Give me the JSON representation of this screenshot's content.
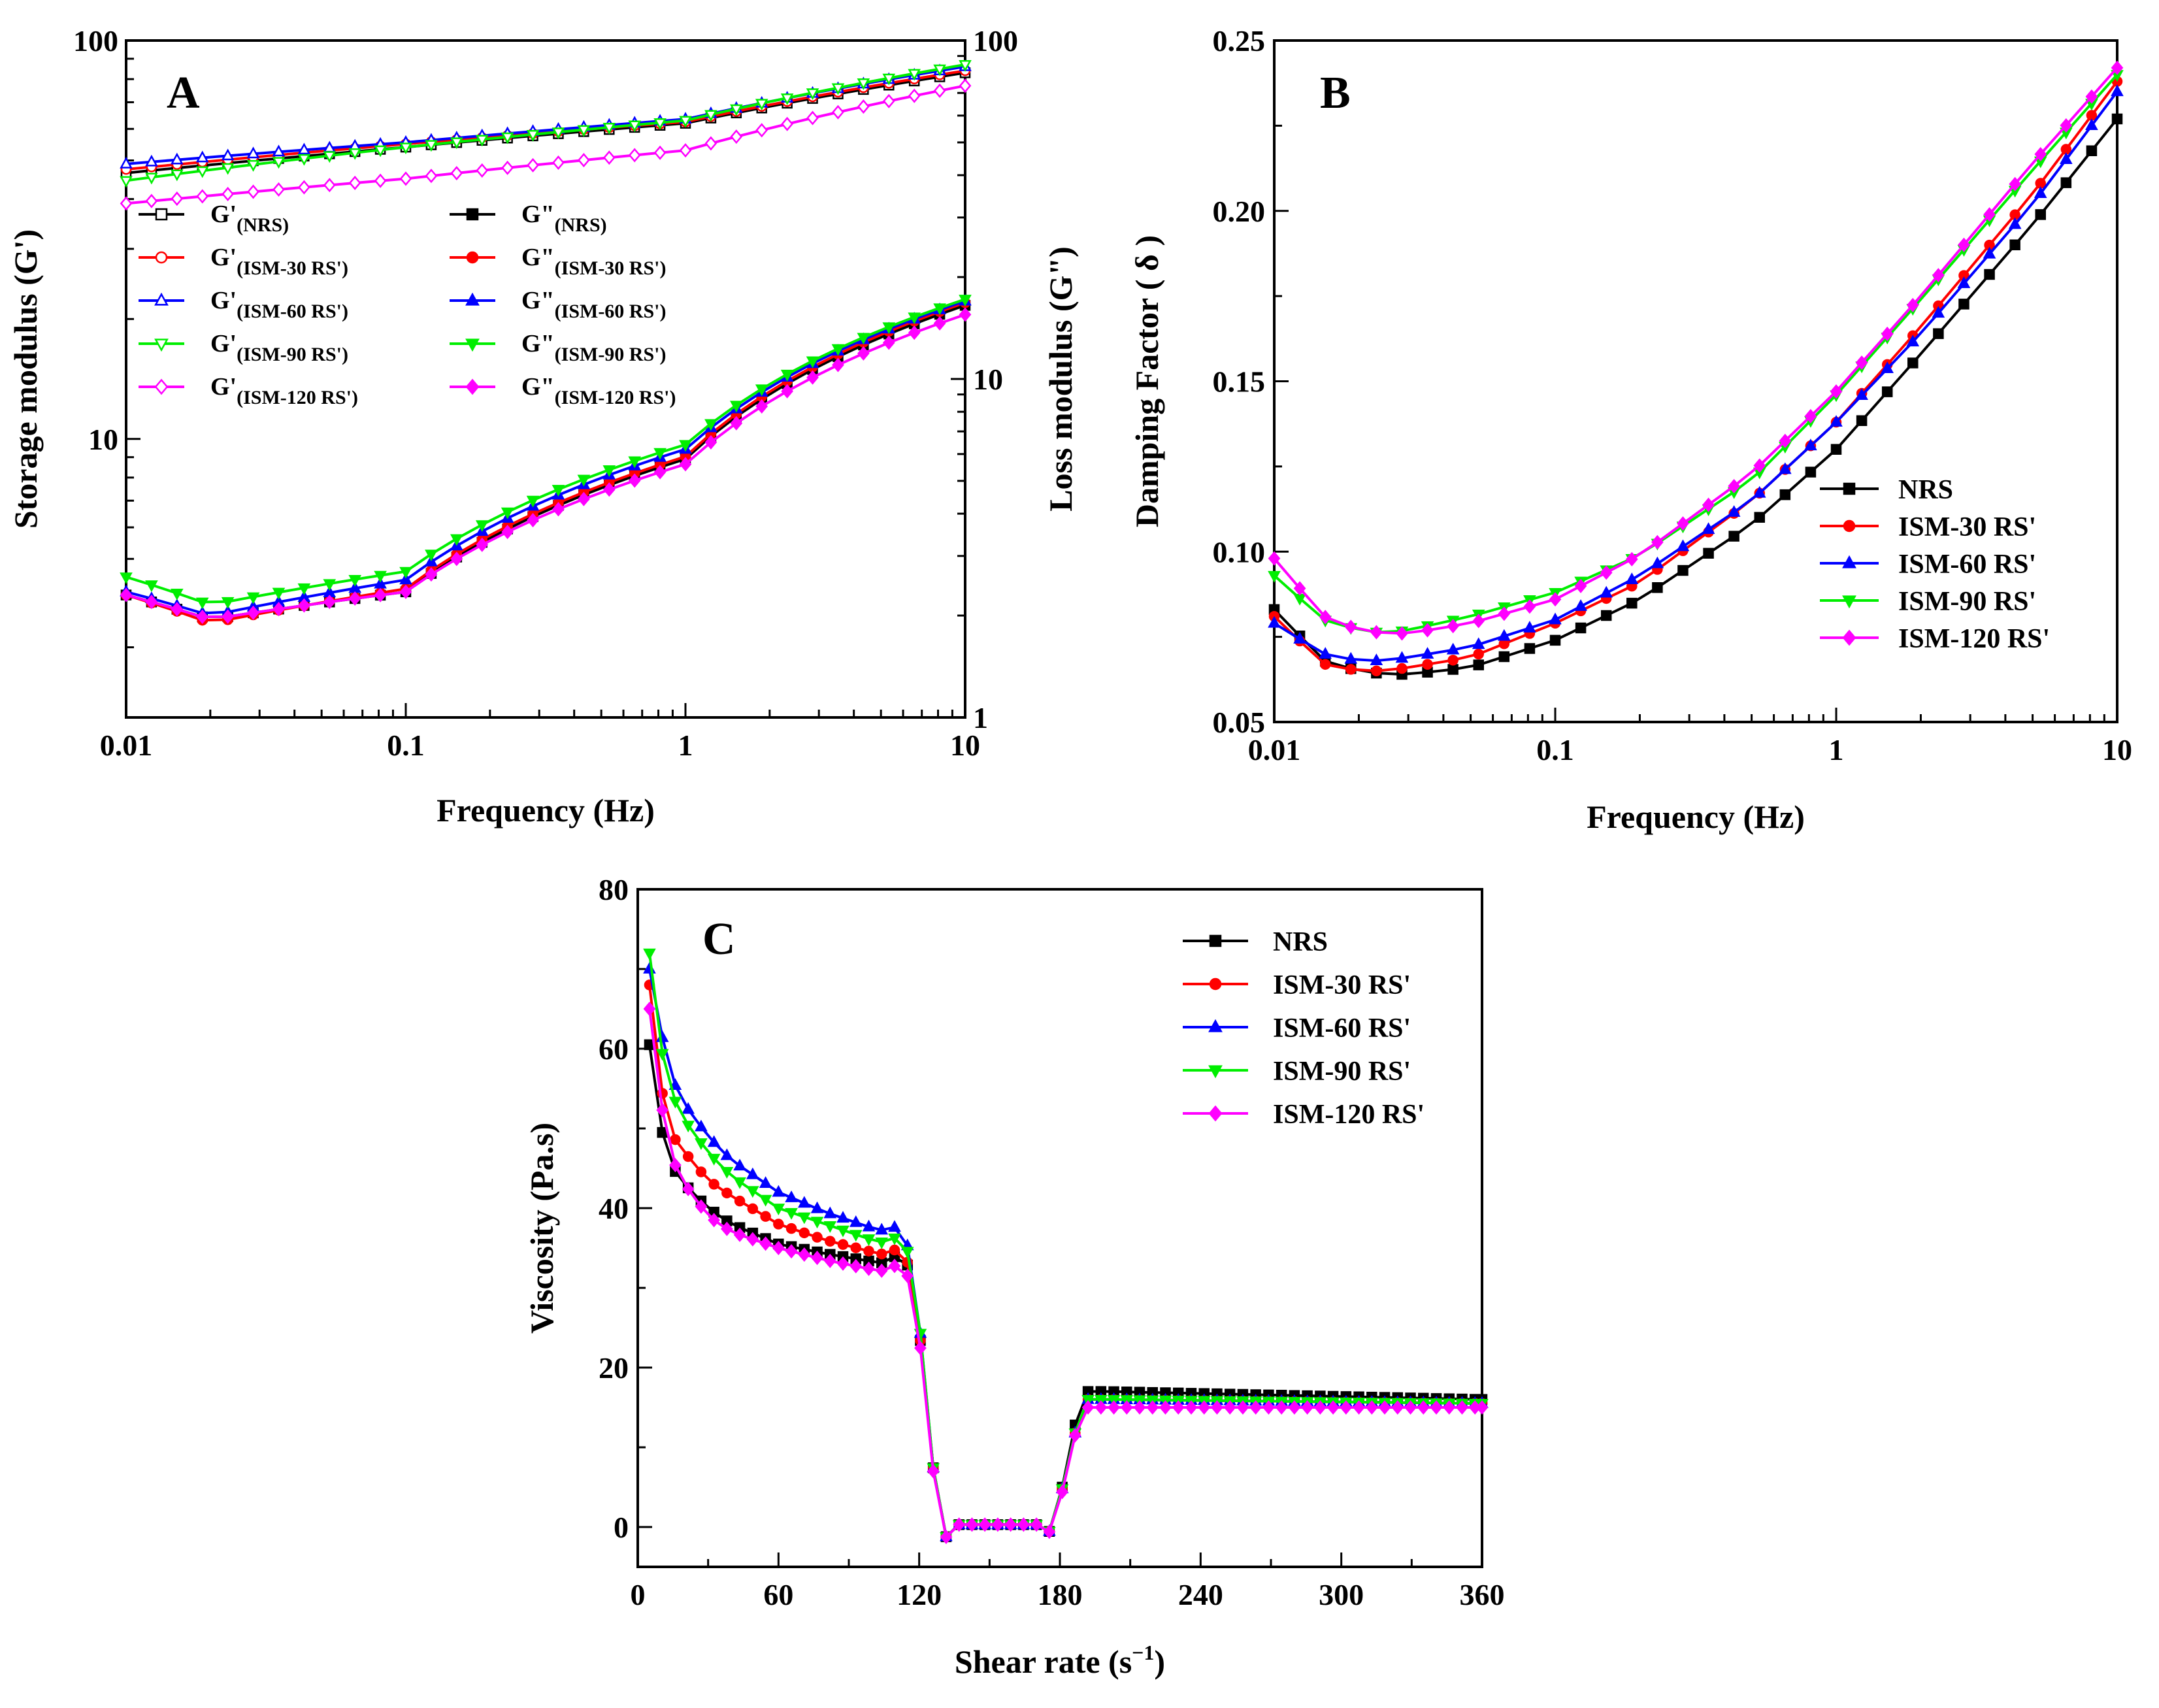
{
  "figure": {
    "panels": [
      "A",
      "B",
      "C"
    ]
  },
  "chart_data": [
    {
      "panel": "A",
      "type": "line",
      "title": "",
      "xlabel": "Frequency (Hz)",
      "ylabel": "Storage modulus (G')",
      "ylabel_right": "Loss modulus (G\")",
      "x_scale": "log",
      "y_scale": "log",
      "xlim": [
        0.01,
        10
      ],
      "ylim": [
        2,
        100
      ],
      "ylim_right": [
        1,
        100
      ],
      "x_ticks": [
        "0.01",
        "0.1",
        "1",
        "10"
      ],
      "y_ticks": [
        "10",
        "100"
      ],
      "y_ticks_right": [
        "1",
        "10",
        "100"
      ],
      "legend_position": "upper-left",
      "legend": [
        {
          "main": "G'",
          "sub": "(NRS)",
          "color": "#000000",
          "marker": "square",
          "filled": false
        },
        {
          "main": "G\"",
          "sub": "(NRS)",
          "color": "#000000",
          "marker": "square",
          "filled": true
        },
        {
          "main": "G'",
          "sub": "(ISM-30 RS')",
          "color": "#ff0000",
          "marker": "circle",
          "filled": false
        },
        {
          "main": "G\"",
          "sub": "(ISM-30 RS')",
          "color": "#ff0000",
          "marker": "circle",
          "filled": true
        },
        {
          "main": "G'",
          "sub": "(ISM-60 RS')",
          "color": "#0000ff",
          "marker": "triangle-up",
          "filled": false
        },
        {
          "main": "G\"",
          "sub": "(ISM-60 RS')",
          "color": "#0000ff",
          "marker": "triangle-up",
          "filled": true
        },
        {
          "main": "G'",
          "sub": "(ISM-90 RS')",
          "color": "#00ee00",
          "marker": "triangle-down",
          "filled": false
        },
        {
          "main": "G\"",
          "sub": "(ISM-90 RS')",
          "color": "#00ee00",
          "marker": "triangle-down",
          "filled": true
        },
        {
          "main": "G'",
          "sub": "(ISM-120 RS')",
          "color": "#ff00ff",
          "marker": "diamond",
          "filled": false
        },
        {
          "main": "G\"",
          "sub": "(ISM-120 RS')",
          "color": "#ff00ff",
          "marker": "diamond",
          "filled": true
        }
      ],
      "storage_series": [
        {
          "name": "G'(NRS)",
          "x": [
            0.01,
            0.1,
            1,
            10
          ],
          "values": [
            46.5,
            54,
            62,
            83
          ]
        },
        {
          "name": "G'(ISM-30 RS')",
          "x": [
            0.01,
            0.1,
            1,
            10
          ],
          "values": [
            47.5,
            55,
            62.5,
            84
          ]
        },
        {
          "name": "G'(ISM-60 RS')",
          "x": [
            0.01,
            0.1,
            1,
            10
          ],
          "values": [
            49,
            55.5,
            63.5,
            86
          ]
        },
        {
          "name": "G'(ISM-90 RS')",
          "x": [
            0.01,
            0.1,
            1,
            10
          ],
          "values": [
            44.5,
            54,
            63,
            87
          ]
        },
        {
          "name": "G'(ISM-120 RS')",
          "x": [
            0.01,
            0.1,
            1,
            10
          ],
          "values": [
            39,
            45,
            53,
            77
          ]
        }
      ],
      "loss_series": [
        {
          "name": "G\"(NRS)",
          "x": [
            0.01,
            0.02,
            0.1,
            1,
            10
          ],
          "values": [
            2.3,
            1.95,
            2.35,
            5.8,
            16.5
          ]
        },
        {
          "name": "G\"(ISM-30 RS')",
          "x": [
            0.01,
            0.02,
            0.1,
            1,
            10
          ],
          "values": [
            2.3,
            1.9,
            2.4,
            5.9,
            16.8
          ]
        },
        {
          "name": "G\"(ISM-60 RS')",
          "x": [
            0.01,
            0.02,
            0.1,
            1,
            10
          ],
          "values": [
            2.35,
            2.0,
            2.55,
            6.2,
            17.0
          ]
        },
        {
          "name": "G\"(ISM-90 RS')",
          "x": [
            0.01,
            0.02,
            0.1,
            1,
            10
          ],
          "values": [
            2.6,
            2.15,
            2.7,
            6.4,
            17.2
          ]
        },
        {
          "name": "G\"(ISM-120 RS')",
          "x": [
            0.01,
            0.02,
            0.1,
            1,
            10
          ],
          "values": [
            2.3,
            1.95,
            2.35,
            5.6,
            15.5
          ]
        }
      ]
    },
    {
      "panel": "B",
      "type": "line",
      "title": "",
      "xlabel": "Frequency (Hz)",
      "ylabel": "Damping Factor ( δ )",
      "x_scale": "log",
      "xlim": [
        0.01,
        10
      ],
      "ylim": [
        0.05,
        0.25
      ],
      "x_ticks": [
        "0.01",
        "0.1",
        "1",
        "10"
      ],
      "y_ticks": [
        "0.05",
        "0.10",
        "0.15",
        "0.20",
        "0.25"
      ],
      "legend_position": "center-right",
      "series": [
        {
          "name": "NRS",
          "color": "#000000",
          "marker": "square",
          "x": [
            0.01,
            0.015,
            0.02,
            0.025,
            0.03,
            0.05,
            0.1,
            0.2,
            0.5,
            1,
            2,
            5,
            10
          ],
          "values": [
            0.083,
            0.068,
            0.065,
            0.064,
            0.064,
            0.066,
            0.074,
            0.086,
            0.108,
            0.13,
            0.158,
            0.196,
            0.227
          ]
        },
        {
          "name": "ISM-30 RS'",
          "color": "#ff0000",
          "marker": "circle",
          "x": [
            0.01,
            0.015,
            0.02,
            0.025,
            0.03,
            0.05,
            0.1,
            0.2,
            0.5,
            1,
            2,
            5,
            10
          ],
          "values": [
            0.081,
            0.067,
            0.065,
            0.065,
            0.066,
            0.069,
            0.079,
            0.091,
            0.115,
            0.138,
            0.166,
            0.205,
            0.238
          ]
        },
        {
          "name": "ISM-60 RS'",
          "color": "#0000ff",
          "marker": "triangle-up",
          "x": [
            0.01,
            0.015,
            0.02,
            0.025,
            0.03,
            0.05,
            0.1,
            0.2,
            0.5,
            1,
            2,
            5,
            10
          ],
          "values": [
            0.079,
            0.07,
            0.068,
            0.068,
            0.069,
            0.072,
            0.08,
            0.093,
            0.115,
            0.138,
            0.164,
            0.202,
            0.235
          ]
        },
        {
          "name": "ISM-90 RS'",
          "color": "#00ee00",
          "marker": "triangle-down",
          "x": [
            0.01,
            0.015,
            0.02,
            0.025,
            0.03,
            0.05,
            0.1,
            0.2,
            0.5,
            1,
            2,
            5,
            10
          ],
          "values": [
            0.093,
            0.08,
            0.077,
            0.076,
            0.077,
            0.081,
            0.088,
            0.099,
            0.121,
            0.146,
            0.174,
            0.212,
            0.24
          ]
        },
        {
          "name": "ISM-120 RS'",
          "color": "#ff00ff",
          "marker": "diamond",
          "x": [
            0.01,
            0.015,
            0.02,
            0.025,
            0.03,
            0.05,
            0.1,
            0.2,
            0.5,
            1,
            2,
            5,
            10
          ],
          "values": [
            0.098,
            0.081,
            0.077,
            0.076,
            0.076,
            0.079,
            0.086,
            0.099,
            0.123,
            0.147,
            0.175,
            0.214,
            0.242
          ]
        }
      ]
    },
    {
      "panel": "C",
      "type": "line",
      "title": "",
      "xlabel": "Shear rate (s",
      "xlabel_sup": "−1",
      "xlabel_end": ")",
      "ylabel": "Viscosity (Pa.s)",
      "xlim": [
        0,
        360
      ],
      "ylim": [
        -5,
        80
      ],
      "x_ticks": [
        "0",
        "60",
        "120",
        "180",
        "240",
        "300",
        "360"
      ],
      "y_ticks": [
        "0",
        "20",
        "40",
        "60",
        "80"
      ],
      "legend_position": "top-right",
      "series": [
        {
          "name": "NRS",
          "color": "#000000",
          "marker": "square",
          "x": [
            5,
            10,
            15,
            20,
            30,
            40,
            60,
            80,
            100,
            108,
            113,
            120,
            125,
            132,
            135,
            140,
            150,
            160,
            170,
            175,
            180,
            185,
            190,
            200,
            360
          ],
          "values": [
            60.5,
            50,
            45,
            43,
            40,
            38,
            35.5,
            34.3,
            33.3,
            33,
            36,
            25,
            9,
            -2,
            0.3,
            0.3,
            0.3,
            0.3,
            0.3,
            -1,
            3.5,
            11,
            17,
            17,
            16
          ]
        },
        {
          "name": "ISM-30 RS'",
          "color": "#ff0000",
          "marker": "circle",
          "x": [
            5,
            10,
            15,
            20,
            30,
            40,
            60,
            80,
            100,
            108,
            113,
            120,
            125,
            132,
            135,
            140,
            150,
            160,
            170,
            175,
            180,
            185,
            190,
            200,
            360
          ],
          "values": [
            68,
            55,
            49,
            47,
            43.5,
            41.5,
            38,
            36,
            34.5,
            34,
            36.5,
            25,
            9,
            -2,
            0.3,
            0.3,
            0.3,
            0.3,
            0.3,
            -1,
            3.5,
            10,
            16,
            16,
            15.5
          ]
        },
        {
          "name": "ISM-60 RS'",
          "color": "#0000ff",
          "marker": "triangle-up",
          "x": [
            5,
            10,
            15,
            20,
            30,
            40,
            60,
            80,
            100,
            108,
            113,
            120,
            125,
            132,
            135,
            140,
            150,
            160,
            170,
            175,
            180,
            185,
            190,
            200,
            360
          ],
          "values": [
            70,
            62,
            56,
            53,
            49,
            46,
            42,
            39.5,
            37.5,
            37,
            39,
            26,
            9,
            -2,
            0.3,
            0.3,
            0.3,
            0.3,
            0.3,
            -1,
            3.5,
            10,
            16,
            16,
            15.5
          ]
        },
        {
          "name": "ISM-90 RS'",
          "color": "#00ee00",
          "marker": "triangle-down",
          "x": [
            5,
            10,
            15,
            20,
            30,
            40,
            60,
            80,
            100,
            108,
            113,
            120,
            125,
            132,
            135,
            140,
            150,
            160,
            170,
            175,
            180,
            185,
            190,
            200,
            360
          ],
          "values": [
            72,
            60,
            54,
            51,
            47,
            44,
            40,
            38,
            36,
            35.5,
            38,
            26,
            9,
            -2,
            0.3,
            0.3,
            0.3,
            0.3,
            0.3,
            -1,
            3.5,
            10,
            16,
            16,
            15.5
          ]
        },
        {
          "name": "ISM-120 RS'",
          "color": "#ff00ff",
          "marker": "diamond",
          "x": [
            5,
            10,
            15,
            20,
            30,
            40,
            60,
            80,
            100,
            108,
            113,
            120,
            125,
            132,
            135,
            140,
            150,
            160,
            170,
            175,
            180,
            185,
            190,
            200,
            360
          ],
          "values": [
            65,
            53,
            46,
            43,
            39,
            37,
            35,
            33.5,
            32.3,
            32,
            34.5,
            24,
            8.5,
            -2,
            0.3,
            0.3,
            0.3,
            0.3,
            0.3,
            -1,
            3,
            10,
            15,
            15,
            15
          ]
        }
      ]
    }
  ]
}
